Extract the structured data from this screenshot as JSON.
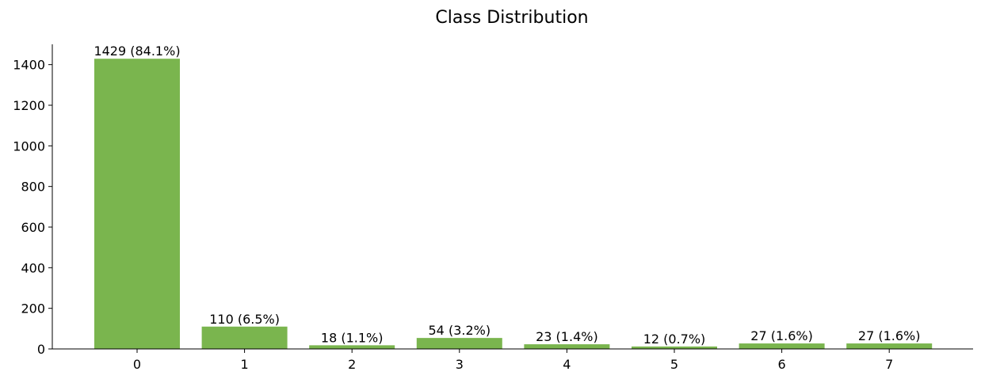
{
  "chart_data": {
    "type": "bar",
    "title": "Class Distribution",
    "xlabel": "",
    "ylabel": "",
    "categories": [
      "0",
      "1",
      "2",
      "3",
      "4",
      "5",
      "6",
      "7"
    ],
    "values": [
      1429,
      110,
      18,
      54,
      23,
      12,
      27,
      27
    ],
    "bar_labels": [
      "1429 (84.1%)",
      "110 (6.5%)",
      "18 (1.1%)",
      "54 (3.2%)",
      "23 (1.4%)",
      "12 (0.7%)",
      "27 (1.6%)",
      "27 (1.6%)"
    ],
    "yticks": [
      0,
      200,
      400,
      600,
      800,
      1000,
      1200,
      1400
    ],
    "ylim": [
      0,
      1500
    ],
    "grid": false,
    "legend": "none",
    "bar_color": "#7ab54e"
  }
}
